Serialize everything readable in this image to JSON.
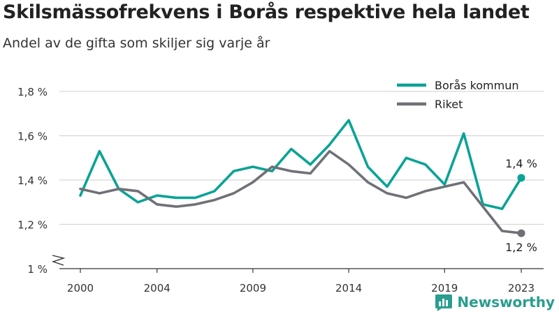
{
  "header": {
    "title": "Skilsmässofrekvens i Borås respektive hela landet",
    "subtitle": "Andel av de gifta som skiljer sig varje år"
  },
  "brand": {
    "name": "Newsworthy",
    "icon": "newsworthy-logo-icon"
  },
  "colors": {
    "boras": "#0aa396",
    "riket": "#707077",
    "grid": "#d6d6d6"
  },
  "chart_data": {
    "type": "line",
    "title": "Skilsmässofrekvens i Borås respektive hela landet",
    "subtitle": "Andel av de gifta som skiljer sig varje år",
    "x": [
      2000,
      2001,
      2002,
      2003,
      2004,
      2005,
      2006,
      2007,
      2008,
      2009,
      2010,
      2011,
      2012,
      2013,
      2014,
      2015,
      2016,
      2017,
      2018,
      2019,
      2020,
      2021,
      2022,
      2023
    ],
    "x_ticks": [
      "2000",
      "2004",
      "2009",
      "2014",
      "2019",
      "2023"
    ],
    "y_ticks": [
      "1 %",
      "1,2 %",
      "1,4 %",
      "1,6 %",
      "1,8 %"
    ],
    "ylim": [
      1.0,
      1.8
    ],
    "y_axis_break": true,
    "grid": true,
    "legend_position": "top-right",
    "series": [
      {
        "name": "Borås kommun",
        "color": "#0aa396",
        "values": [
          1.33,
          1.53,
          1.36,
          1.3,
          1.33,
          1.32,
          1.32,
          1.35,
          1.44,
          1.46,
          1.44,
          1.54,
          1.47,
          1.56,
          1.67,
          1.46,
          1.37,
          1.5,
          1.47,
          1.38,
          1.61,
          1.29,
          1.27,
          1.41
        ],
        "end_label": "1,4 %"
      },
      {
        "name": "Riket",
        "color": "#707077",
        "values": [
          1.36,
          1.34,
          1.36,
          1.35,
          1.29,
          1.28,
          1.29,
          1.31,
          1.34,
          1.39,
          1.46,
          1.44,
          1.43,
          1.53,
          1.47,
          1.39,
          1.34,
          1.32,
          1.35,
          1.37,
          1.39,
          1.28,
          1.17,
          1.16
        ],
        "end_label": "1,2 %"
      }
    ]
  }
}
